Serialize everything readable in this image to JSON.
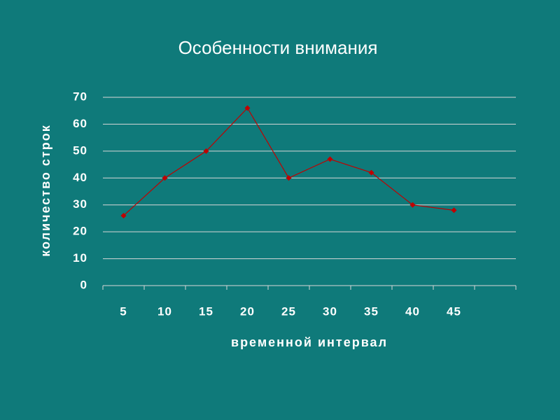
{
  "chart_data": {
    "type": "line",
    "title": "Особенности внимания",
    "x_label": "временной интервал",
    "y_label": "количество строк",
    "categories": [
      "5",
      "10",
      "15",
      "20",
      "25",
      "30",
      "35",
      "40",
      "45",
      null
    ],
    "series": [
      {
        "name": "количество строк",
        "color": "#c00000",
        "values": [
          26,
          40,
          50,
          66,
          40,
          47,
          42,
          30,
          28,
          null
        ]
      }
    ],
    "ylim": [
      0,
      70
    ],
    "yticks": [
      0,
      10,
      20,
      30,
      40,
      50,
      60,
      70
    ],
    "grid": true
  }
}
